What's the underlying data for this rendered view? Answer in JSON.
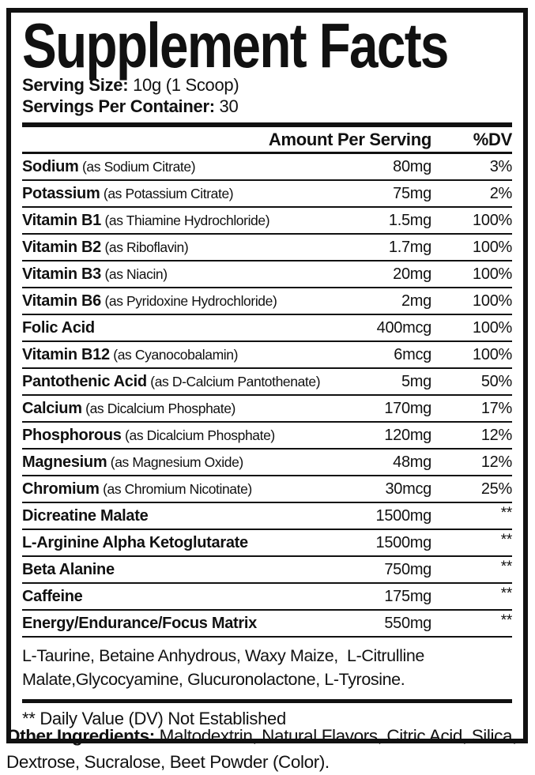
{
  "label": {
    "title": "Supplement Facts",
    "serving_size_label": "Serving Size:",
    "serving_size_value": " 10g (1 Scoop)",
    "servings_per_container_label": "Servings Per Container:",
    "servings_per_container_value": " 30",
    "header": {
      "amount_column": "Amount Per Serving",
      "dv_column": "%DV"
    },
    "rows": [
      {
        "name": "Sodium",
        "detail": " (as Sodium Citrate)",
        "amount": "80mg",
        "dv": "3%"
      },
      {
        "name": "Potassium",
        "detail": " (as Potassium Citrate)",
        "amount": "75mg",
        "dv": "2%"
      },
      {
        "name": "Vitamin B1",
        "detail": " (as Thiamine Hydrochloride)",
        "amount": "1.5mg",
        "dv": "100%"
      },
      {
        "name": "Vitamin B2",
        "detail": " (as Riboflavin)",
        "amount": "1.7mg",
        "dv": "100%"
      },
      {
        "name": "Vitamin B3",
        "detail": " (as Niacin)",
        "amount": "20mg",
        "dv": "100%"
      },
      {
        "name": "Vitamin B6",
        "detail": " (as Pyridoxine Hydrochloride)",
        "amount": "2mg",
        "dv": "100%"
      },
      {
        "name": "Folic Acid",
        "detail": "",
        "amount": "400mcg",
        "dv": "100%"
      },
      {
        "name": "Vitamin B12",
        "detail": " (as Cyanocobalamin)",
        "amount": "6mcg",
        "dv": "100%"
      },
      {
        "name": "Pantothenic Acid",
        "detail": " (as D-Calcium Pantothenate)",
        "amount": "5mg",
        "dv": "50%"
      },
      {
        "name": "Calcium",
        "detail": " (as Dicalcium Phosphate)",
        "amount": "170mg",
        "dv": "17%"
      },
      {
        "name": "Phosphorous",
        "detail": " (as Dicalcium Phosphate)",
        "amount": "120mg",
        "dv": "12%"
      },
      {
        "name": "Magnesium",
        "detail": " (as Magnesium Oxide)",
        "amount": "48mg",
        "dv": "12%"
      },
      {
        "name": "Chromium",
        "detail": " (as Chromium Nicotinate)",
        "amount": "30mcg",
        "dv": "25%"
      },
      {
        "name": "Dicreatine Malate",
        "detail": "",
        "amount": "1500mg",
        "dv": "**"
      },
      {
        "name": "L-Arginine Alpha Ketoglutarate",
        "detail": "",
        "amount": "1500mg",
        "dv": "**"
      },
      {
        "name": "Beta Alanine",
        "detail": "",
        "amount": "750mg",
        "dv": "**"
      },
      {
        "name": "Caffeine",
        "detail": "",
        "amount": "175mg",
        "dv": "**"
      },
      {
        "name": "Energy/Endurance/Focus Matrix",
        "detail": "",
        "amount": "550mg",
        "dv": "**"
      }
    ],
    "blend_text": "L-Taurine, Betaine Anhydrous, Waxy Maize,  L-Citrulline Malate,Glycocyamine, Glucuronolactone, L-Tyrosine.",
    "footnote": "** Daily Value (DV) Not Established",
    "other_ingredients_label": "Other Ingredients:",
    "other_ingredients_text": " Maltodextrin, Natural Flavors, Citric Acid, Silica, Dextrose, Sucralose, Beet Powder (Color)."
  },
  "colors": {
    "ink": "#111111",
    "background": "#ffffff"
  }
}
